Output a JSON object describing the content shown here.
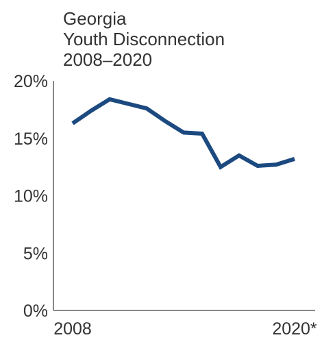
{
  "chart_data": {
    "type": "line",
    "title_lines": [
      "Georgia",
      "Youth Disconnection",
      "2008–2020"
    ],
    "x": [
      2008,
      2009,
      2010,
      2011,
      2012,
      2013,
      2014,
      2015,
      2016,
      2017,
      2018,
      2019,
      2020
    ],
    "x_tick_labels": [
      {
        "x": 2008,
        "label": "2008"
      },
      {
        "x": 2020,
        "label": "2020*"
      }
    ],
    "y_tick_labels": [
      "0%",
      "5%",
      "10%",
      "15%",
      "20%"
    ],
    "ylim": [
      0,
      20
    ],
    "y_ticks": [
      0,
      5,
      10,
      15,
      20
    ],
    "series": [
      {
        "values": [
          16.3,
          17.4,
          18.4,
          18.0,
          17.6,
          16.5,
          15.5,
          15.4,
          12.5,
          13.5,
          12.6,
          12.7,
          13.2
        ]
      }
    ],
    "line_color": "#1c4a80",
    "axis_color": "#888888",
    "grid": false
  }
}
